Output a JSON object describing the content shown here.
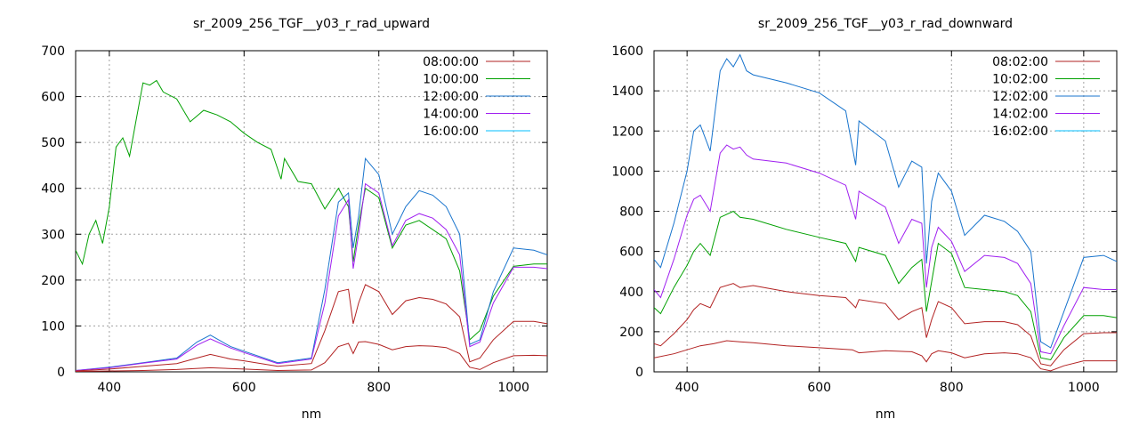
{
  "chart_data": [
    {
      "type": "line",
      "title": "sr_2009_256_TGF__y03_r_rad_upward",
      "xlabel": "nm",
      "ylabel": "",
      "xlim": [
        350,
        1050
      ],
      "ylim": [
        0,
        700
      ],
      "xticks": [
        400,
        600,
        800,
        1000
      ],
      "yticks": [
        0,
        100,
        200,
        300,
        400,
        500,
        600,
        700
      ],
      "grid": true,
      "legend_position": "top-right",
      "series": [
        {
          "name": "08:00:00",
          "color": "#b22222",
          "x": [
            350,
            400,
            450,
            500,
            550,
            600,
            650,
            700,
            720,
            740,
            755,
            762,
            770,
            780,
            800,
            820,
            840,
            860,
            880,
            900,
            920,
            935,
            950,
            970,
            1000,
            1030,
            1050
          ],
          "y": [
            1,
            2,
            3,
            5,
            9,
            6,
            3,
            4,
            20,
            55,
            62,
            40,
            65,
            66,
            60,
            48,
            55,
            57,
            56,
            53,
            40,
            10,
            5,
            20,
            35,
            36,
            35
          ]
        },
        {
          "name": "10:00:00",
          "color": "#00a000",
          "x": [
            350,
            360,
            370,
            380,
            390,
            400,
            410,
            420,
            430,
            440,
            450,
            460,
            470,
            480,
            500,
            520,
            540,
            560,
            580,
            600,
            620,
            640,
            655,
            660,
            680,
            700,
            720,
            740,
            755,
            762,
            770,
            780,
            800,
            820,
            840,
            860,
            880,
            900,
            920,
            935,
            950,
            970,
            1000,
            1030,
            1050
          ],
          "y": [
            265,
            235,
            300,
            330,
            280,
            360,
            490,
            510,
            470,
            550,
            630,
            625,
            635,
            610,
            595,
            545,
            570,
            560,
            545,
            520,
            500,
            485,
            420,
            465,
            415,
            410,
            355,
            400,
            360,
            240,
            320,
            400,
            380,
            270,
            320,
            330,
            310,
            290,
            220,
            70,
            90,
            165,
            230,
            235,
            235
          ]
        },
        {
          "name": "12:00:00",
          "color": "#1874cd",
          "x": [
            350,
            400,
            450,
            500,
            530,
            550,
            580,
            600,
            650,
            700,
            720,
            740,
            755,
            762,
            770,
            780,
            800,
            820,
            840,
            860,
            880,
            900,
            920,
            935,
            950,
            970,
            1000,
            1030,
            1050
          ],
          "y": [
            3,
            10,
            20,
            30,
            65,
            80,
            55,
            45,
            20,
            30,
            180,
            370,
            390,
            270,
            340,
            465,
            430,
            300,
            360,
            395,
            385,
            360,
            300,
            60,
            70,
            175,
            270,
            265,
            255
          ]
        },
        {
          "name": "14:00:00",
          "color": "#a020f0",
          "x": [
            350,
            400,
            450,
            500,
            530,
            550,
            580,
            600,
            650,
            700,
            720,
            740,
            755,
            762,
            770,
            780,
            800,
            820,
            840,
            860,
            880,
            900,
            920,
            935,
            950,
            970,
            1000,
            1030,
            1050
          ],
          "y": [
            3,
            9,
            19,
            28,
            58,
            72,
            52,
            42,
            18,
            28,
            150,
            340,
            375,
            225,
            300,
            410,
            390,
            275,
            330,
            345,
            335,
            310,
            255,
            55,
            65,
            150,
            228,
            228,
            225
          ]
        },
        {
          "name": "16:00:00",
          "color": "#00bfff",
          "x": [],
          "y": []
        },
        {
          "name": "",
          "color": "#b22222",
          "x": [
            350,
            400,
            450,
            500,
            530,
            550,
            580,
            600,
            650,
            700,
            720,
            740,
            755,
            762,
            770,
            780,
            800,
            820,
            840,
            860,
            880,
            900,
            920,
            935,
            950,
            970,
            1000,
            1030,
            1050
          ],
          "y": [
            2,
            6,
            12,
            18,
            30,
            38,
            28,
            24,
            12,
            18,
            90,
            175,
            180,
            105,
            150,
            190,
            175,
            125,
            155,
            162,
            158,
            148,
            120,
            22,
            30,
            70,
            110,
            110,
            105
          ]
        }
      ]
    },
    {
      "type": "line",
      "title": "sr_2009_256_TGF__y03_r_rad_downward",
      "xlabel": "nm",
      "ylabel": "",
      "xlim": [
        350,
        1050
      ],
      "ylim": [
        0,
        1600
      ],
      "xticks": [
        400,
        600,
        800,
        1000
      ],
      "yticks": [
        0,
        200,
        400,
        600,
        800,
        1000,
        1200,
        1400,
        1600
      ],
      "grid": true,
      "legend_position": "top-right",
      "series": [
        {
          "name": "08:02:00",
          "color": "#b22222",
          "x": [
            350,
            380,
            400,
            420,
            440,
            460,
            480,
            500,
            550,
            600,
            650,
            660,
            700,
            740,
            755,
            762,
            770,
            780,
            800,
            820,
            850,
            880,
            900,
            920,
            935,
            950,
            970,
            1000,
            1030,
            1050
          ],
          "y": [
            70,
            90,
            110,
            130,
            140,
            155,
            150,
            145,
            130,
            120,
            110,
            95,
            105,
            100,
            80,
            50,
            90,
            105,
            95,
            70,
            90,
            95,
            90,
            70,
            15,
            5,
            30,
            55,
            55,
            55
          ]
        },
        {
          "name": "10:02:00",
          "color": "#00a000",
          "x": [
            350,
            360,
            380,
            400,
            410,
            420,
            435,
            450,
            470,
            480,
            500,
            550,
            600,
            640,
            655,
            660,
            700,
            720,
            740,
            755,
            762,
            770,
            780,
            800,
            820,
            850,
            880,
            900,
            920,
            935,
            950,
            970,
            1000,
            1030,
            1050
          ],
          "y": [
            320,
            290,
            420,
            530,
            600,
            640,
            580,
            770,
            800,
            770,
            760,
            710,
            670,
            640,
            550,
            620,
            580,
            440,
            520,
            560,
            300,
            450,
            640,
            590,
            420,
            410,
            400,
            380,
            300,
            70,
            60,
            170,
            280,
            280,
            270
          ]
        },
        {
          "name": "12:02:00",
          "color": "#1874cd",
          "x": [
            350,
            360,
            380,
            400,
            410,
            420,
            435,
            450,
            460,
            470,
            480,
            490,
            500,
            550,
            600,
            640,
            655,
            660,
            700,
            720,
            740,
            755,
            762,
            770,
            780,
            800,
            820,
            850,
            880,
            900,
            920,
            935,
            950,
            970,
            1000,
            1030,
            1050
          ],
          "y": [
            560,
            520,
            740,
            1000,
            1200,
            1230,
            1100,
            1500,
            1560,
            1520,
            1580,
            1500,
            1480,
            1440,
            1390,
            1300,
            1030,
            1250,
            1150,
            920,
            1050,
            1020,
            540,
            850,
            990,
            900,
            680,
            780,
            750,
            700,
            600,
            150,
            120,
            300,
            570,
            580,
            550
          ]
        },
        {
          "name": "14:02:00",
          "color": "#a020f0",
          "x": [
            350,
            360,
            380,
            400,
            410,
            420,
            435,
            450,
            460,
            470,
            480,
            490,
            500,
            550,
            600,
            640,
            655,
            660,
            700,
            720,
            740,
            755,
            762,
            770,
            780,
            800,
            820,
            850,
            880,
            900,
            920,
            935,
            950,
            970,
            1000,
            1030,
            1050
          ],
          "y": [
            410,
            370,
            560,
            780,
            860,
            880,
            800,
            1090,
            1130,
            1110,
            1120,
            1080,
            1060,
            1040,
            990,
            930,
            760,
            900,
            820,
            640,
            760,
            740,
            420,
            620,
            720,
            650,
            500,
            580,
            570,
            540,
            440,
            100,
            90,
            230,
            420,
            410,
            410
          ]
        },
        {
          "name": "16:02:00",
          "color": "#00bfff",
          "x": [],
          "y": []
        },
        {
          "name": "",
          "color": "#b22222",
          "x": [
            350,
            360,
            380,
            400,
            410,
            420,
            435,
            450,
            470,
            480,
            500,
            550,
            600,
            640,
            655,
            660,
            700,
            720,
            740,
            755,
            762,
            770,
            780,
            800,
            820,
            850,
            880,
            900,
            920,
            935,
            950,
            970,
            1000,
            1030,
            1050
          ],
          "y": [
            140,
            130,
            190,
            260,
            310,
            340,
            320,
            420,
            440,
            420,
            430,
            400,
            380,
            370,
            320,
            360,
            340,
            260,
            300,
            320,
            170,
            260,
            350,
            320,
            240,
            250,
            250,
            235,
            180,
            40,
            30,
            110,
            190,
            195,
            195
          ]
        }
      ]
    }
  ]
}
